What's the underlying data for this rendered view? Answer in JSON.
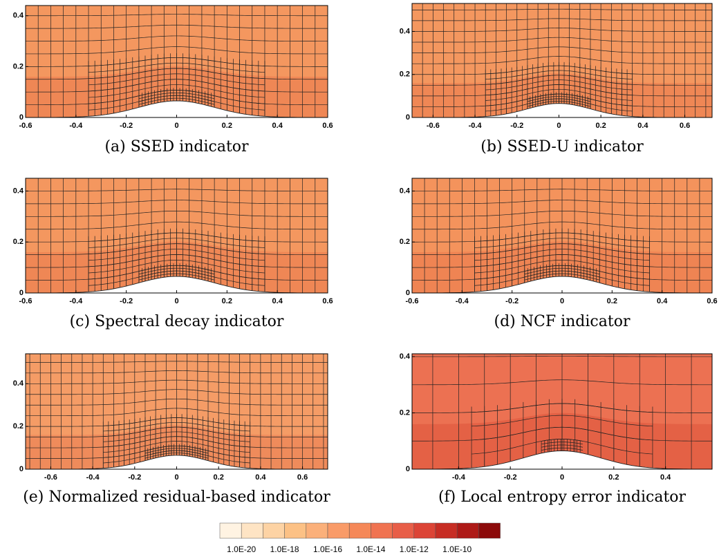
{
  "panels": [
    {
      "caption": "(a) SSED indicator",
      "xlim": [
        -0.6,
        0.6
      ],
      "ylim": [
        0,
        0.44
      ],
      "xticks": [
        -0.6,
        -0.4,
        -0.2,
        0,
        0.2,
        0.4,
        0.6
      ],
      "yticks": [
        0,
        0.2,
        0.4
      ],
      "fill": "#f4975f"
    },
    {
      "caption": "(b) SSED-U indicator",
      "xlim": [
        -0.7,
        0.73
      ],
      "ylim": [
        0,
        0.53
      ],
      "xticks": [
        -0.6,
        -0.4,
        -0.2,
        0,
        0.2,
        0.4,
        0.6
      ],
      "yticks": [
        0,
        0.2,
        0.4
      ],
      "fill": "#f4975f"
    },
    {
      "caption": "(c) Spectral decay indicator",
      "xlim": [
        -0.6,
        0.6
      ],
      "ylim": [
        0,
        0.45
      ],
      "xticks": [
        -0.6,
        -0.4,
        -0.2,
        0,
        0.2,
        0.4,
        0.6
      ],
      "yticks": [
        0,
        0.2,
        0.4
      ],
      "fill": "#f4975f"
    },
    {
      "caption": "(d) NCF indicator",
      "xlim": [
        -0.6,
        0.6
      ],
      "ylim": [
        0,
        0.45
      ],
      "xticks": [
        -0.6,
        -0.4,
        -0.2,
        0,
        0.2,
        0.4,
        0.6
      ],
      "yticks": [
        0,
        0.2,
        0.4
      ],
      "fill": "#f4935c"
    },
    {
      "caption": "(e) Normalized residual-based indicator",
      "xlim": [
        -0.72,
        0.72
      ],
      "ylim": [
        0,
        0.54
      ],
      "xticks": [
        -0.6,
        -0.4,
        -0.2,
        0,
        0.2,
        0.4,
        0.6
      ],
      "yticks": [
        0,
        0.2,
        0.4
      ],
      "fill": "#f59c66"
    },
    {
      "caption": "(f) Local entropy error indicator",
      "xlim": [
        -0.58,
        0.58
      ],
      "ylim": [
        0,
        0.41
      ],
      "xticks": [
        -0.4,
        -0.2,
        0,
        0.2,
        0.4
      ],
      "yticks": [
        0,
        0.2,
        0.4
      ],
      "fill": "#ec7152"
    }
  ],
  "colorbar": {
    "colors": [
      "#fff3e2",
      "#fee4c4",
      "#fdd3a4",
      "#fcc185",
      "#fbb07a",
      "#f99b68",
      "#f58858",
      "#f07351",
      "#e85e48",
      "#dc4436",
      "#c72d24",
      "#ae1a17",
      "#8c0a0a"
    ],
    "labels": [
      "1.0E-20",
      "1.0E-18",
      "1.0E-16",
      "1.0E-14",
      "1.0E-12",
      "1.0E-10"
    ]
  }
}
